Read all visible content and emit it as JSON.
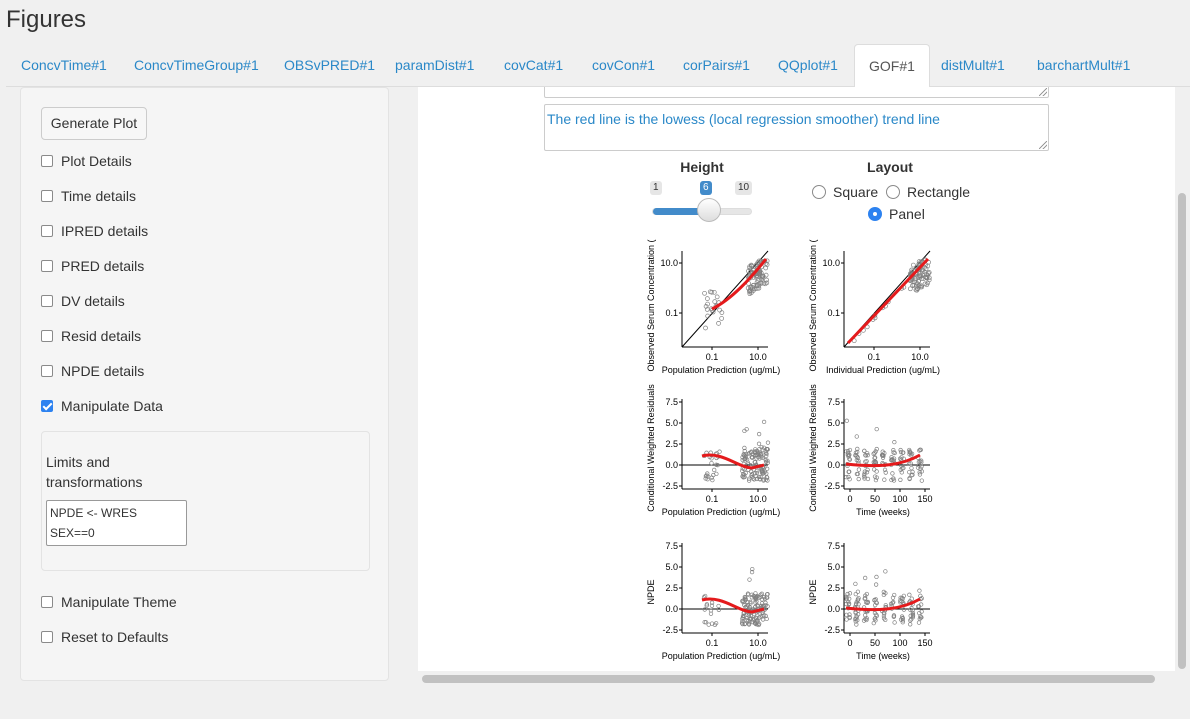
{
  "page": {
    "title": "Figures"
  },
  "tabs": [
    {
      "label": "ConcvTime#1"
    },
    {
      "label": "ConcvTimeGroup#1"
    },
    {
      "label": "OBSvPRED#1"
    },
    {
      "label": "paramDist#1"
    },
    {
      "label": "covCat#1"
    },
    {
      "label": "covCon#1"
    },
    {
      "label": "corPairs#1"
    },
    {
      "label": "QQplot#1"
    },
    {
      "label": "GOF#1",
      "active": true
    },
    {
      "label": "distMult#1"
    },
    {
      "label": "barchartMult#1"
    }
  ],
  "sidebar": {
    "generate_button": "Generate Plot",
    "checkboxes": [
      {
        "label": "Plot Details",
        "checked": false
      },
      {
        "label": "Time details",
        "checked": false
      },
      {
        "label": "IPRED details",
        "checked": false
      },
      {
        "label": "PRED details",
        "checked": false
      },
      {
        "label": "DV details",
        "checked": false
      },
      {
        "label": "Resid details",
        "checked": false
      },
      {
        "label": "NPDE details",
        "checked": false
      },
      {
        "label": "Manipulate Data",
        "checked": true
      },
      {
        "label": "Manipulate Theme",
        "checked": false
      },
      {
        "label": "Reset to Defaults",
        "checked": false
      }
    ],
    "manipulate": {
      "label": "Limits and transformations",
      "textarea_value": "NPDE <- WRES\nSEX==0"
    }
  },
  "main": {
    "caption_text": "The red line is the lowess (local regression smoother) trend line",
    "height": {
      "label": "Height",
      "min": "1",
      "max": "10",
      "value": "6",
      "value_fraction": 0.556
    },
    "layout": {
      "label": "Layout",
      "options": [
        {
          "label": "Square",
          "selected": false
        },
        {
          "label": "Rectangle",
          "selected": false
        },
        {
          "label": "Panel",
          "selected": true
        }
      ]
    },
    "plot": {
      "panels": [
        {
          "ylabel": "Observed Serum Concentration (u",
          "xlabel": "Population Prediction (ug/mL)",
          "yticks": [
            "10.0",
            "0.1"
          ],
          "xticks": [
            "0.1",
            "10.0"
          ]
        },
        {
          "ylabel": "Observed Serum Concentration (u",
          "xlabel": "Individual Prediction (ug/mL)",
          "yticks": [
            "10.0",
            "0.1"
          ],
          "xticks": [
            "0.1",
            "10.0"
          ]
        },
        {
          "ylabel": "Conditional Weighted Residuals",
          "xlabel": "Population Prediction (ug/mL)",
          "yticks": [
            "7.5",
            "5.0",
            "2.5",
            "0.0",
            "-2.5"
          ],
          "xticks": [
            "0.1",
            "10.0"
          ]
        },
        {
          "ylabel": "Conditional Weighted Residuals",
          "xlabel": "Time (weeks)",
          "yticks": [
            "7.5",
            "5.0",
            "2.5",
            "0.0",
            "-2.5"
          ],
          "xticks": [
            "0",
            "50",
            "100",
            "150"
          ]
        },
        {
          "ylabel": "NPDE",
          "xlabel": "Population Prediction (ug/mL)",
          "yticks": [
            "7.5",
            "5.0",
            "2.5",
            "0.0",
            "-2.5"
          ],
          "xticks": [
            "0.1",
            "10.0"
          ]
        },
        {
          "ylabel": "NPDE",
          "xlabel": "Time (weeks)",
          "yticks": [
            "7.5",
            "5.0",
            "2.5",
            "0.0",
            "-2.5"
          ],
          "xticks": [
            "0",
            "50",
            "100",
            "150"
          ]
        }
      ],
      "colors": {
        "trend": "#e41a1c",
        "points": "#808080",
        "identity": "#000000"
      }
    }
  }
}
